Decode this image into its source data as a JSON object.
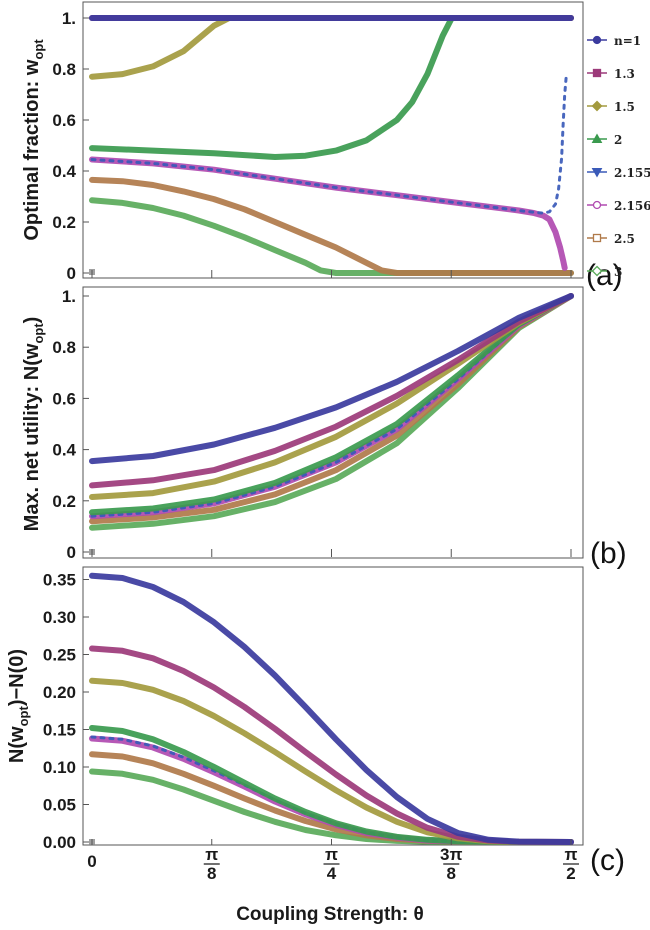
{
  "legend": {
    "title_prefix": "n=",
    "items": [
      {
        "label": "n=1",
        "color": "#3b3b9e",
        "marker": "circle-filled"
      },
      {
        "label": "1.3",
        "color": "#9c3a7a",
        "marker": "square-filled"
      },
      {
        "label": "1.5",
        "color": "#a39a3e",
        "marker": "diamond-filled"
      },
      {
        "label": "2",
        "color": "#3a9a4e",
        "marker": "triangle-up-filled"
      },
      {
        "label": "2.155",
        "color": "#3a5ab8",
        "marker": "triangle-down-filled"
      },
      {
        "label": "2.156",
        "color": "#b04ab0",
        "marker": "circle-open"
      },
      {
        "label": "2.5",
        "color": "#b07a4a",
        "marker": "square-open"
      },
      {
        "label": "3",
        "color": "#5aaa5a",
        "marker": "diamond-open"
      }
    ]
  },
  "x_axis": {
    "title": "Coupling Strength: θ",
    "ticks": [
      {
        "value": 0,
        "label_num": "0",
        "label_den": ""
      },
      {
        "value": 0.3927,
        "label_num": "π",
        "label_den": "8"
      },
      {
        "value": 0.7854,
        "label_num": "π",
        "label_den": "4"
      },
      {
        "value": 1.1781,
        "label_num": "3π",
        "label_den": "8"
      },
      {
        "value": 1.5708,
        "label_num": "π",
        "label_den": "2"
      }
    ]
  },
  "chart_data": [
    {
      "type": "line",
      "panel_tag": "(a)",
      "ylabel_main": "Optimal fraction: w",
      "ylabel_sub": "opt",
      "xlim": [
        0,
        1.5708
      ],
      "ylim": [
        0,
        1
      ],
      "yticks": [
        {
          "value": 0,
          "label": "0"
        },
        {
          "value": 0.2,
          "label": "0.2"
        },
        {
          "value": 0.4,
          "label": "0.4"
        },
        {
          "value": 0.6,
          "label": "0.6"
        },
        {
          "value": 0.8,
          "label": "0.8"
        },
        {
          "value": 1,
          "label": "1."
        }
      ],
      "series": [
        {
          "name": "n=1",
          "x": [
            0,
            1.5708
          ],
          "y": [
            1,
            1
          ]
        },
        {
          "name": "1.3",
          "x": [
            0,
            0.2,
            0.4,
            0.6,
            0.8,
            1.0,
            1.2,
            1.4,
            1.5708
          ],
          "y": [
            1,
            1,
            1,
            1,
            1,
            1,
            1,
            1,
            1
          ]
        },
        {
          "name": "1.5",
          "x": [
            0,
            0.1,
            0.2,
            0.3,
            0.4,
            0.45,
            0.5,
            0.8,
            1.2,
            1.5708
          ],
          "y": [
            0.77,
            0.78,
            0.81,
            0.87,
            0.97,
            1,
            1,
            1,
            1,
            1
          ]
        },
        {
          "name": "2",
          "x": [
            0,
            0.2,
            0.4,
            0.6,
            0.7,
            0.8,
            0.9,
            1.0,
            1.05,
            1.1,
            1.15,
            1.18,
            1.2,
            1.5708
          ],
          "y": [
            0.49,
            0.48,
            0.47,
            0.455,
            0.46,
            0.48,
            0.52,
            0.6,
            0.67,
            0.78,
            0.93,
            1,
            1,
            1
          ]
        },
        {
          "name": "2.155",
          "x": [
            0,
            0.2,
            0.4,
            0.6,
            0.8,
            1.0,
            1.2,
            1.3,
            1.4,
            1.45,
            1.48,
            1.5,
            1.52,
            1.53,
            1.54,
            1.545,
            1.55,
            1.555
          ],
          "y": [
            0.445,
            0.43,
            0.405,
            0.37,
            0.335,
            0.305,
            0.275,
            0.26,
            0.245,
            0.238,
            0.235,
            0.24,
            0.27,
            0.33,
            0.45,
            0.58,
            0.7,
            0.77
          ]
        },
        {
          "name": "2.156",
          "x": [
            0,
            0.2,
            0.4,
            0.6,
            0.8,
            1.0,
            1.2,
            1.3,
            1.4,
            1.45,
            1.48,
            1.5,
            1.52,
            1.535,
            1.545,
            1.55
          ],
          "y": [
            0.445,
            0.43,
            0.405,
            0.37,
            0.335,
            0.305,
            0.275,
            0.26,
            0.245,
            0.235,
            0.225,
            0.21,
            0.16,
            0.1,
            0.05,
            0.02
          ]
        },
        {
          "name": "2.5",
          "x": [
            0,
            0.1,
            0.2,
            0.3,
            0.4,
            0.5,
            0.6,
            0.7,
            0.8,
            0.9,
            0.95,
            1.0,
            1.5708
          ],
          "y": [
            0.365,
            0.36,
            0.345,
            0.32,
            0.29,
            0.25,
            0.2,
            0.15,
            0.1,
            0.04,
            0.01,
            0,
            0
          ]
        },
        {
          "name": "3",
          "x": [
            0,
            0.1,
            0.2,
            0.3,
            0.4,
            0.5,
            0.6,
            0.7,
            0.75,
            0.8,
            1.5708
          ],
          "y": [
            0.285,
            0.275,
            0.255,
            0.225,
            0.185,
            0.14,
            0.09,
            0.04,
            0.01,
            0,
            0
          ]
        }
      ]
    },
    {
      "type": "line",
      "panel_tag": "(b)",
      "ylabel_main": "Max. net utility: N(w",
      "ylabel_sub": "opt",
      "ylabel_end": ")",
      "xlim": [
        0,
        1.5708
      ],
      "ylim": [
        0,
        1
      ],
      "yticks": [
        {
          "value": 0,
          "label": "0"
        },
        {
          "value": 0.2,
          "label": "0.2"
        },
        {
          "value": 0.4,
          "label": "0.4"
        },
        {
          "value": 0.6,
          "label": "0.6"
        },
        {
          "value": 0.8,
          "label": "0.8"
        },
        {
          "value": 1,
          "label": "1."
        }
      ],
      "series": [
        {
          "name": "n=1",
          "x": [
            0,
            0.2,
            0.4,
            0.6,
            0.8,
            1.0,
            1.2,
            1.4,
            1.5708
          ],
          "y": [
            0.355,
            0.375,
            0.42,
            0.485,
            0.565,
            0.665,
            0.785,
            0.915,
            1
          ]
        },
        {
          "name": "1.3",
          "x": [
            0,
            0.2,
            0.4,
            0.6,
            0.8,
            1.0,
            1.2,
            1.4,
            1.5708
          ],
          "y": [
            0.26,
            0.28,
            0.32,
            0.395,
            0.49,
            0.61,
            0.75,
            0.9,
            1
          ]
        },
        {
          "name": "1.5",
          "x": [
            0,
            0.2,
            0.4,
            0.6,
            0.8,
            1.0,
            1.2,
            1.4,
            1.5708
          ],
          "y": [
            0.215,
            0.23,
            0.275,
            0.35,
            0.45,
            0.58,
            0.735,
            0.895,
            1
          ]
        },
        {
          "name": "2",
          "x": [
            0,
            0.2,
            0.4,
            0.6,
            0.8,
            1.0,
            1.2,
            1.4,
            1.5708
          ],
          "y": [
            0.155,
            0.17,
            0.205,
            0.27,
            0.37,
            0.5,
            0.69,
            0.89,
            1
          ]
        },
        {
          "name": "2.155",
          "x": [
            0,
            0.2,
            0.4,
            0.6,
            0.8,
            1.0,
            1.2,
            1.4,
            1.5708
          ],
          "y": [
            0.14,
            0.155,
            0.19,
            0.255,
            0.35,
            0.48,
            0.675,
            0.885,
            1
          ]
        },
        {
          "name": "2.156",
          "x": [
            0,
            0.2,
            0.4,
            0.6,
            0.8,
            1.0,
            1.2,
            1.4,
            1.5708
          ],
          "y": [
            0.14,
            0.155,
            0.19,
            0.255,
            0.35,
            0.48,
            0.675,
            0.885,
            1
          ]
        },
        {
          "name": "2.5",
          "x": [
            0,
            0.2,
            0.4,
            0.6,
            0.8,
            1.0,
            1.2,
            1.4,
            1.5708
          ],
          "y": [
            0.12,
            0.135,
            0.165,
            0.225,
            0.32,
            0.455,
            0.655,
            0.88,
            1
          ]
        },
        {
          "name": "3",
          "x": [
            0,
            0.2,
            0.4,
            0.6,
            0.8,
            1.0,
            1.2,
            1.4,
            1.5708
          ],
          "y": [
            0.095,
            0.11,
            0.14,
            0.195,
            0.285,
            0.425,
            0.64,
            0.875,
            1
          ]
        }
      ]
    },
    {
      "type": "line",
      "panel_tag": "(c)",
      "ylabel_main": "N(w",
      "ylabel_sub": "opt",
      "ylabel_end": ")−N(0)",
      "xlim": [
        0,
        1.5708
      ],
      "ylim": [
        0,
        0.36
      ],
      "yticks": [
        {
          "value": 0,
          "label": "0.00"
        },
        {
          "value": 0.05,
          "label": "0.05"
        },
        {
          "value": 0.1,
          "label": "0.10"
        },
        {
          "value": 0.15,
          "label": "0.15"
        },
        {
          "value": 0.2,
          "label": "0.20"
        },
        {
          "value": 0.25,
          "label": "0.25"
        },
        {
          "value": 0.3,
          "label": "0.30"
        },
        {
          "value": 0.35,
          "label": "0.35"
        }
      ],
      "series": [
        {
          "name": "n=1",
          "x": [
            0,
            0.1,
            0.2,
            0.3,
            0.4,
            0.5,
            0.6,
            0.7,
            0.8,
            0.9,
            1.0,
            1.1,
            1.2,
            1.3,
            1.4,
            1.5708
          ],
          "y": [
            0.355,
            0.352,
            0.34,
            0.32,
            0.293,
            0.26,
            0.222,
            0.18,
            0.137,
            0.096,
            0.06,
            0.031,
            0.012,
            0.003,
            0.0005,
            0
          ]
        },
        {
          "name": "1.3",
          "x": [
            0,
            0.1,
            0.2,
            0.3,
            0.4,
            0.5,
            0.6,
            0.7,
            0.8,
            0.9,
            1.0,
            1.1,
            1.2,
            1.3,
            1.4,
            1.5708
          ],
          "y": [
            0.258,
            0.255,
            0.245,
            0.228,
            0.206,
            0.18,
            0.151,
            0.12,
            0.09,
            0.062,
            0.038,
            0.019,
            0.007,
            0.002,
            0.0003,
            0
          ]
        },
        {
          "name": "1.5",
          "x": [
            0,
            0.1,
            0.2,
            0.3,
            0.4,
            0.5,
            0.6,
            0.7,
            0.8,
            0.9,
            1.0,
            1.1,
            1.2,
            1.3,
            1.4,
            1.5708
          ],
          "y": [
            0.215,
            0.212,
            0.203,
            0.188,
            0.168,
            0.145,
            0.12,
            0.094,
            0.069,
            0.046,
            0.027,
            0.013,
            0.005,
            0.001,
            0.0002,
            0
          ]
        },
        {
          "name": "2",
          "x": [
            0,
            0.1,
            0.2,
            0.3,
            0.4,
            0.5,
            0.6,
            0.7,
            0.8,
            0.9,
            1.0,
            1.1,
            1.2,
            1.3,
            1.4,
            1.5708
          ],
          "y": [
            0.152,
            0.148,
            0.137,
            0.12,
            0.1,
            0.079,
            0.058,
            0.04,
            0.025,
            0.014,
            0.007,
            0.003,
            0.001,
            0.0002,
            0,
            0
          ]
        },
        {
          "name": "2.155",
          "x": [
            0,
            0.1,
            0.2,
            0.3,
            0.4,
            0.5,
            0.6,
            0.7,
            0.8,
            0.9,
            1.0,
            1.1,
            1.2,
            1.3,
            1.4,
            1.5708
          ],
          "y": [
            0.14,
            0.137,
            0.128,
            0.113,
            0.095,
            0.076,
            0.056,
            0.038,
            0.024,
            0.013,
            0.006,
            0.002,
            0.0008,
            0.0002,
            0,
            0
          ]
        },
        {
          "name": "2.156",
          "x": [
            0,
            0.1,
            0.2,
            0.3,
            0.4,
            0.5,
            0.6,
            0.7,
            0.8,
            0.9,
            1.0,
            1.1,
            1.2,
            1.3,
            1.4,
            1.5708
          ],
          "y": [
            0.138,
            0.135,
            0.126,
            0.111,
            0.093,
            0.074,
            0.054,
            0.037,
            0.023,
            0.012,
            0.006,
            0.002,
            0.0008,
            0.0002,
            0,
            0
          ]
        },
        {
          "name": "2.5",
          "x": [
            0,
            0.1,
            0.2,
            0.3,
            0.4,
            0.5,
            0.6,
            0.7,
            0.8,
            0.9,
            1.0,
            1.1,
            1.2,
            1.3,
            1.4,
            1.5708
          ],
          "y": [
            0.117,
            0.114,
            0.105,
            0.091,
            0.075,
            0.058,
            0.042,
            0.028,
            0.017,
            0.009,
            0.004,
            0.0015,
            0.0005,
            0.0001,
            0,
            0
          ]
        },
        {
          "name": "3",
          "x": [
            0,
            0.1,
            0.2,
            0.3,
            0.4,
            0.5,
            0.6,
            0.7,
            0.8,
            0.9,
            1.0,
            1.1,
            1.2,
            1.3,
            1.4,
            1.5708
          ],
          "y": [
            0.094,
            0.091,
            0.083,
            0.07,
            0.055,
            0.04,
            0.027,
            0.016,
            0.009,
            0.004,
            0.0015,
            0.0005,
            0.0001,
            0,
            0,
            0
          ]
        }
      ]
    }
  ]
}
